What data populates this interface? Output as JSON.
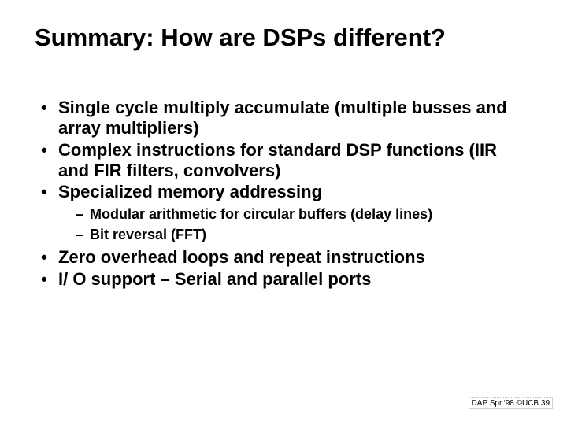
{
  "title": "Summary: How are DSPs different?",
  "bullets": {
    "b0": "Single cycle multiply accumulate (multiple busses and array multipliers)",
    "b1": "Complex instructions for standard DSP functions (IIR and FIR filters, convolvers)",
    "b2": "Specialized memory addressing",
    "b2_sub0": "Modular arithmetic for circular buffers (delay lines)",
    "b2_sub1": "Bit reversal (FFT)",
    "b3": "Zero overhead loops and repeat instructions",
    "b4": "I/ O support – Serial and parallel ports"
  },
  "footer": "DAP Spr.‘98 ©UCB 39"
}
